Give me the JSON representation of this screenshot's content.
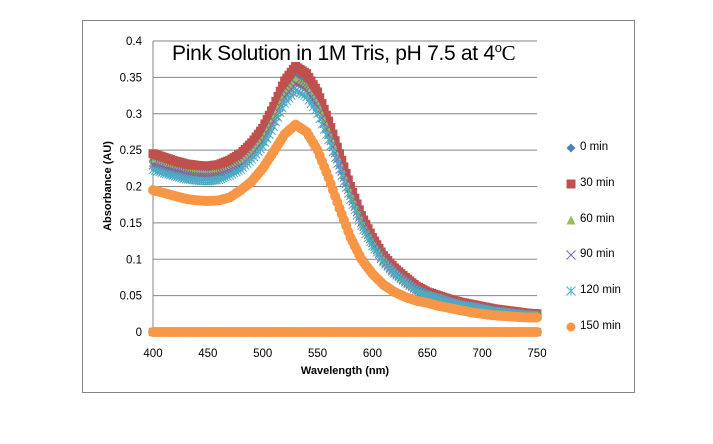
{
  "chart_data": {
    "type": "scatter",
    "title": "Pink Solution in 1M Tris, pH 7.5 at 4°C",
    "title_parts": {
      "main": "Pink Solution in 1M Tris, pH 7.5 at 4",
      "sup": "o",
      "end": "C"
    },
    "xlabel": "Wavelength (nm)",
    "ylabel": "Absorbance  (AU)",
    "xlim": [
      400,
      750
    ],
    "ylim": [
      0,
      0.4
    ],
    "xticks": [
      400,
      450,
      500,
      550,
      600,
      650,
      700,
      750
    ],
    "xtick_labels": [
      "400",
      "450",
      "500",
      "550",
      "600",
      "650",
      "700",
      "750"
    ],
    "yticks": [
      0,
      0.05,
      0.1,
      0.15,
      0.2,
      0.25,
      0.3,
      0.35,
      0.4
    ],
    "ytick_labels": [
      "0",
      "0.05",
      "0.1",
      "0.15",
      "0.2",
      "0.25",
      "0.3",
      "0.35",
      "0.4"
    ],
    "grid": "horizontal",
    "legend_position": "right",
    "baseline_zero_points_x_range": [
      400,
      750
    ],
    "x": [
      400,
      410,
      420,
      430,
      440,
      450,
      460,
      470,
      480,
      490,
      500,
      510,
      520,
      530,
      540,
      550,
      560,
      570,
      580,
      590,
      600,
      610,
      620,
      630,
      640,
      650,
      660,
      670,
      680,
      690,
      700,
      710,
      720,
      730,
      740,
      750
    ],
    "series": [
      {
        "name": "0 min",
        "marker": "diamond",
        "color": "#4F81BD",
        "values": [
          0.236,
          0.232,
          0.227,
          0.223,
          0.221,
          0.22,
          0.222,
          0.228,
          0.236,
          0.251,
          0.27,
          0.299,
          0.333,
          0.352,
          0.343,
          0.318,
          0.28,
          0.236,
          0.193,
          0.154,
          0.125,
          0.101,
          0.085,
          0.072,
          0.061,
          0.053,
          0.048,
          0.043,
          0.04,
          0.037,
          0.034,
          0.031,
          0.029,
          0.027,
          0.025,
          0.024
        ]
      },
      {
        "name": "30 min",
        "marker": "square",
        "color": "#C0504D",
        "values": [
          0.245,
          0.24,
          0.235,
          0.231,
          0.229,
          0.228,
          0.23,
          0.236,
          0.245,
          0.26,
          0.28,
          0.31,
          0.345,
          0.365,
          0.355,
          0.33,
          0.29,
          0.245,
          0.2,
          0.16,
          0.13,
          0.105,
          0.088,
          0.075,
          0.063,
          0.055,
          0.05,
          0.045,
          0.041,
          0.038,
          0.035,
          0.032,
          0.03,
          0.028,
          0.026,
          0.025
        ]
      },
      {
        "name": "60 min",
        "marker": "triangle",
        "color": "#9BBB59",
        "values": [
          0.233,
          0.228,
          0.223,
          0.219,
          0.218,
          0.217,
          0.219,
          0.224,
          0.233,
          0.247,
          0.266,
          0.295,
          0.328,
          0.347,
          0.337,
          0.314,
          0.276,
          0.233,
          0.19,
          0.152,
          0.124,
          0.1,
          0.084,
          0.071,
          0.06,
          0.052,
          0.048,
          0.043,
          0.039,
          0.036,
          0.033,
          0.03,
          0.029,
          0.027,
          0.025,
          0.024
        ]
      },
      {
        "name": "90 min",
        "marker": "x",
        "color": "#8064A2",
        "values": [
          0.229,
          0.224,
          0.22,
          0.216,
          0.214,
          0.213,
          0.215,
          0.221,
          0.229,
          0.243,
          0.262,
          0.29,
          0.323,
          0.341,
          0.332,
          0.309,
          0.271,
          0.229,
          0.187,
          0.15,
          0.122,
          0.098,
          0.082,
          0.07,
          0.059,
          0.051,
          0.047,
          0.042,
          0.038,
          0.036,
          0.033,
          0.03,
          0.028,
          0.026,
          0.024,
          0.023
        ]
      },
      {
        "name": "120 min",
        "marker": "star",
        "color": "#4BACC6",
        "values": [
          0.223,
          0.218,
          0.214,
          0.21,
          0.208,
          0.207,
          0.209,
          0.215,
          0.223,
          0.237,
          0.255,
          0.282,
          0.314,
          0.332,
          0.323,
          0.3,
          0.264,
          0.223,
          0.182,
          0.146,
          0.118,
          0.096,
          0.08,
          0.068,
          0.057,
          0.05,
          0.046,
          0.041,
          0.037,
          0.035,
          0.032,
          0.029,
          0.027,
          0.025,
          0.024,
          0.023
        ]
      },
      {
        "name": "150 min",
        "marker": "circle",
        "color": "#F79646",
        "values": [
          0.195,
          0.191,
          0.187,
          0.183,
          0.181,
          0.18,
          0.181,
          0.185,
          0.195,
          0.207,
          0.225,
          0.248,
          0.272,
          0.285,
          0.275,
          0.25,
          0.212,
          0.17,
          0.13,
          0.1,
          0.08,
          0.065,
          0.055,
          0.048,
          0.043,
          0.04,
          0.036,
          0.033,
          0.03,
          0.027,
          0.025,
          0.023,
          0.022,
          0.021,
          0.02,
          0.02
        ]
      }
    ]
  }
}
